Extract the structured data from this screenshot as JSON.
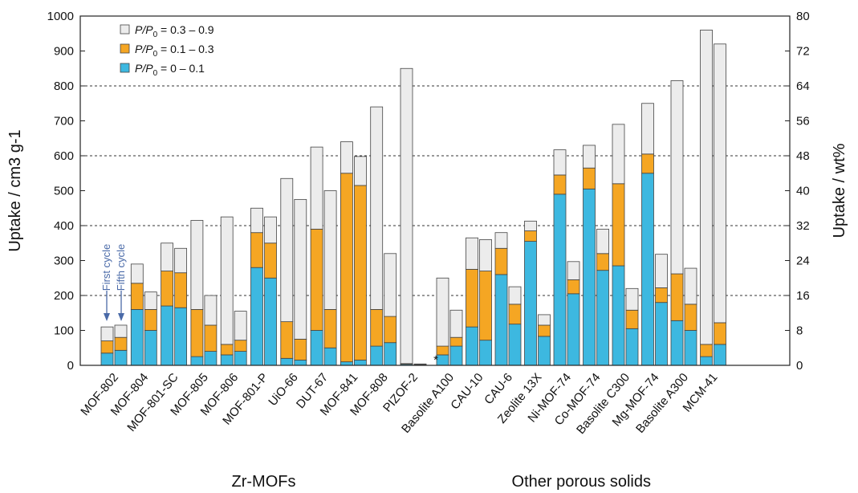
{
  "chart_data": {
    "type": "bar",
    "stacked": true,
    "ylabel": "Uptake / cm3 g-1",
    "ylabel_right": "Uptake / wt%",
    "ylim": [
      0,
      1000
    ],
    "yticks": [
      "0",
      "100",
      "200",
      "300",
      "400",
      "500",
      "600",
      "700",
      "800",
      "900",
      "1000"
    ],
    "ylim_right": [
      0,
      80
    ],
    "yticks_right": [
      "0",
      "8",
      "16",
      "24",
      "32",
      "40",
      "48",
      "56",
      "64",
      "72",
      "80"
    ],
    "gridlines": [
      200,
      400,
      600,
      800
    ],
    "legend_position": "top-left",
    "legend": [
      {
        "italic": "P/P",
        "sub": "0",
        "rest": " = 0.3 – 0.9",
        "color": "#ececec"
      },
      {
        "italic": "P/P",
        "sub": "0",
        "rest": " = 0.1 – 0.3",
        "color": "#f5a623"
      },
      {
        "italic": "P/P",
        "sub": "0",
        "rest": " = 0 – 0.1",
        "color": "#3db8e0"
      }
    ],
    "colors": {
      "s1": "#3db8e0",
      "s2": "#f5a623",
      "s3": "#ececec"
    },
    "groups": [
      {
        "label": "Zr-MOFs",
        "categories": [
          {
            "name": "MOF-802",
            "bars": [
              [
                35,
                70,
                110
              ],
              [
                43,
                80,
                115
              ]
            ]
          },
          {
            "name": "MOF-804",
            "bars": [
              [
                160,
                235,
                290
              ],
              [
                100,
                160,
                210
              ]
            ]
          },
          {
            "name": "MOF-801-SC",
            "bars": [
              [
                170,
                270,
                350
              ],
              [
                165,
                265,
                335
              ]
            ]
          },
          {
            "name": "MOF-805",
            "bars": [
              [
                25,
                160,
                415
              ],
              [
                40,
                115,
                200
              ]
            ]
          },
          {
            "name": "MOF-806",
            "bars": [
              [
                30,
                60,
                425
              ],
              [
                40,
                72,
                155
              ]
            ]
          },
          {
            "name": "MOF-801-P",
            "bars": [
              [
                280,
                380,
                450
              ],
              [
                250,
                350,
                425
              ]
            ]
          },
          {
            "name": "UiO-66",
            "bars": [
              [
                20,
                125,
                535
              ],
              [
                15,
                75,
                475
              ]
            ]
          },
          {
            "name": "DUT-67",
            "bars": [
              [
                100,
                390,
                625
              ],
              [
                50,
                160,
                500
              ]
            ]
          },
          {
            "name": "MOF-841",
            "bars": [
              [
                10,
                550,
                640
              ],
              [
                15,
                515,
                598
              ]
            ]
          },
          {
            "name": "MOF-808",
            "bars": [
              [
                55,
                160,
                740
              ],
              [
                65,
                140,
                320
              ]
            ]
          },
          {
            "name": "PIZOF-2",
            "bars": [
              [
                3,
                5,
                850
              ],
              [
                1,
                2,
                4
              ]
            ]
          }
        ]
      },
      {
        "label": "Other porous solids",
        "categories": [
          {
            "name": "Basolite A100",
            "bars": [
              [
                30,
                55,
                250
              ],
              [
                55,
                80,
                158
              ]
            ]
          },
          {
            "name": "CAU-10",
            "bars": [
              [
                110,
                275,
                365
              ],
              [
                72,
                270,
                360
              ]
            ]
          },
          {
            "name": "CAU-6",
            "bars": [
              [
                260,
                335,
                380
              ],
              [
                118,
                175,
                225
              ]
            ]
          },
          {
            "name": "Zeolite 13X",
            "bars": [
              [
                355,
                385,
                413
              ],
              [
                83,
                115,
                145
              ]
            ]
          },
          {
            "name": "Ni-MOF-74",
            "bars": [
              [
                490,
                545,
                617
              ],
              [
                205,
                245,
                297
              ]
            ]
          },
          {
            "name": "Co-MOF-74",
            "bars": [
              [
                505,
                565,
                630
              ],
              [
                272,
                320,
                390
              ]
            ]
          },
          {
            "name": "Basolite C300",
            "bars": [
              [
                285,
                520,
                690
              ],
              [
                105,
                158,
                220
              ]
            ]
          },
          {
            "name": "Mg-MOF-74",
            "bars": [
              [
                550,
                605,
                750
              ],
              [
                180,
                222,
                318
              ]
            ]
          },
          {
            "name": "Basolite A300",
            "bars": [
              [
                128,
                262,
                815
              ],
              [
                100,
                175,
                278
              ]
            ]
          },
          {
            "name": "MCM-41",
            "bars": [
              [
                25,
                60,
                960
              ],
              [
                60,
                122,
                920
              ]
            ]
          }
        ]
      }
    ],
    "annotations": {
      "first": "First cycle",
      "fifth": "Fifth cycle",
      "star": "*"
    }
  }
}
